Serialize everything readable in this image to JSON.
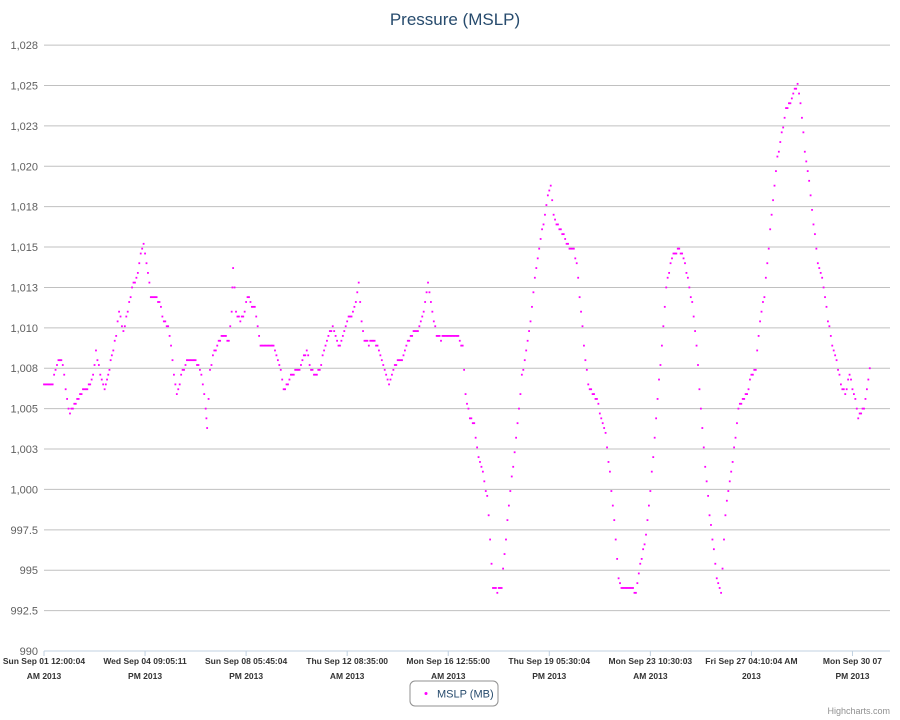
{
  "chart_data": {
    "type": "scatter",
    "title": "Pressure (MSLP)",
    "colors": {
      "series": "#ff00ff",
      "grid": "#c0c0c0",
      "title": "#274b6d"
    },
    "ylim": [
      990,
      1028
    ],
    "y_ticks": [
      990,
      992.5,
      995,
      997.5,
      1000,
      1002.5,
      1005,
      1007.5,
      1010,
      1012.5,
      1015,
      1017.5,
      1020,
      1022.5,
      1025,
      1027.5
    ],
    "y_tick_labels": [
      "990",
      "992.5",
      "995",
      "997.5",
      "1,000",
      "1,003",
      "1,005",
      "1,008",
      "1,010",
      "1,013",
      "1,015",
      "1,018",
      "1,020",
      "1,023",
      "1,025",
      "1,028"
    ],
    "xlim_days": [
      0,
      29.3
    ],
    "x_ticks": [
      {
        "day": 0.0,
        "line1": "Sun Sep 01 12:00:04",
        "line2": "AM 2013"
      },
      {
        "day": 3.5,
        "line1": "Wed Sep 04 09:05:11",
        "line2": "PM 2013"
      },
      {
        "day": 7.0,
        "line1": "Sun Sep 08 05:45:04",
        "line2": "PM 2013"
      },
      {
        "day": 10.5,
        "line1": "Thu Sep 12 08:35:00",
        "line2": "AM 2013"
      },
      {
        "day": 14.0,
        "line1": "Mon Sep 16 12:55:00",
        "line2": "AM 2013"
      },
      {
        "day": 17.5,
        "line1": "Thu Sep 19 05:30:04",
        "line2": "PM 2013"
      },
      {
        "day": 21.0,
        "line1": "Mon Sep 23 10:30:03",
        "line2": "AM 2013"
      },
      {
        "day": 24.5,
        "line1": "Fri Sep 27 04:10:04 AM",
        "line2": "2013"
      },
      {
        "day": 28.0,
        "line1": "Mon Sep 30 07",
        "line2": "PM 2013"
      }
    ],
    "series": [
      {
        "name": "MSLP (MB)",
        "keypoints": [
          [
            0.0,
            1006.5
          ],
          [
            0.3,
            1006.6
          ],
          [
            0.5,
            1008.0
          ],
          [
            0.65,
            1007.8
          ],
          [
            0.8,
            1005.5
          ],
          [
            0.9,
            1004.7
          ],
          [
            1.1,
            1005.3
          ],
          [
            1.3,
            1006.0
          ],
          [
            1.5,
            1006.2
          ],
          [
            1.7,
            1007.0
          ],
          [
            1.8,
            1008.5
          ],
          [
            1.95,
            1007.2
          ],
          [
            2.1,
            1006.2
          ],
          [
            2.35,
            1008.2
          ],
          [
            2.5,
            1009.5
          ],
          [
            2.6,
            1011.0
          ],
          [
            2.75,
            1009.8
          ],
          [
            2.9,
            1011.0
          ],
          [
            3.05,
            1012.5
          ],
          [
            3.2,
            1013.0
          ],
          [
            3.35,
            1014.5
          ],
          [
            3.45,
            1015.2
          ],
          [
            3.6,
            1013.5
          ],
          [
            3.7,
            1011.8
          ],
          [
            3.85,
            1012.0
          ],
          [
            4.0,
            1011.5
          ],
          [
            4.15,
            1010.5
          ],
          [
            4.3,
            1010.0
          ],
          [
            4.4,
            1009.0
          ],
          [
            4.5,
            1007.0
          ],
          [
            4.6,
            1005.8
          ],
          [
            4.75,
            1007.0
          ],
          [
            4.9,
            1007.8
          ],
          [
            5.05,
            1008.0
          ],
          [
            5.25,
            1008.0
          ],
          [
            5.4,
            1007.5
          ],
          [
            5.5,
            1006.5
          ],
          [
            5.6,
            1005.0
          ],
          [
            5.65,
            1003.8
          ],
          [
            5.75,
            1007.5
          ],
          [
            5.9,
            1008.5
          ],
          [
            6.05,
            1009.2
          ],
          [
            6.2,
            1009.5
          ],
          [
            6.4,
            1009.2
          ],
          [
            6.5,
            1011.0
          ],
          [
            6.55,
            1013.8
          ],
          [
            6.65,
            1011.0
          ],
          [
            6.8,
            1010.5
          ],
          [
            6.95,
            1011.0
          ],
          [
            7.05,
            1012.0
          ],
          [
            7.15,
            1011.5
          ],
          [
            7.3,
            1011.2
          ],
          [
            7.4,
            1010.0
          ],
          [
            7.5,
            1009.0
          ],
          [
            7.7,
            1009.0
          ],
          [
            7.9,
            1009.0
          ],
          [
            8.0,
            1008.5
          ],
          [
            8.2,
            1007.5
          ],
          [
            8.3,
            1006.2
          ],
          [
            8.45,
            1006.5
          ],
          [
            8.6,
            1007.2
          ],
          [
            8.8,
            1007.3
          ],
          [
            8.95,
            1008.0
          ],
          [
            9.1,
            1008.5
          ],
          [
            9.25,
            1007.5
          ],
          [
            9.4,
            1007.0
          ],
          [
            9.55,
            1007.5
          ],
          [
            9.7,
            1008.5
          ],
          [
            9.85,
            1009.5
          ],
          [
            10.0,
            1010.0
          ],
          [
            10.1,
            1009.5
          ],
          [
            10.2,
            1008.8
          ],
          [
            10.35,
            1009.5
          ],
          [
            10.5,
            1010.5
          ],
          [
            10.65,
            1010.8
          ],
          [
            10.8,
            1011.5
          ],
          [
            10.9,
            1012.8
          ],
          [
            11.0,
            1010.5
          ],
          [
            11.1,
            1009.2
          ],
          [
            11.25,
            1009.0
          ],
          [
            11.4,
            1009.3
          ],
          [
            11.55,
            1008.8
          ],
          [
            11.7,
            1008.0
          ],
          [
            11.8,
            1007.5
          ],
          [
            11.95,
            1006.5
          ],
          [
            12.1,
            1007.5
          ],
          [
            12.25,
            1008.0
          ],
          [
            12.4,
            1008.0
          ],
          [
            12.55,
            1009.0
          ],
          [
            12.7,
            1009.5
          ],
          [
            12.85,
            1009.8
          ],
          [
            13.0,
            1010.0
          ],
          [
            13.15,
            1011.0
          ],
          [
            13.3,
            1012.8
          ],
          [
            13.45,
            1011.0
          ],
          [
            13.6,
            1009.5
          ],
          [
            13.75,
            1009.3
          ],
          [
            13.9,
            1009.5
          ],
          [
            14.05,
            1009.5
          ],
          [
            14.2,
            1009.5
          ],
          [
            14.35,
            1009.5
          ],
          [
            14.5,
            1008.8
          ],
          [
            14.6,
            1005.8
          ],
          [
            14.75,
            1004.5
          ],
          [
            14.9,
            1004.0
          ],
          [
            15.05,
            1002.0
          ],
          [
            15.2,
            1001.0
          ],
          [
            15.35,
            999.5
          ],
          [
            15.45,
            997.0
          ],
          [
            15.55,
            994.0
          ],
          [
            15.7,
            993.7
          ],
          [
            15.85,
            994.0
          ],
          [
            15.95,
            996.0
          ],
          [
            16.1,
            999.0
          ],
          [
            16.25,
            1001.5
          ],
          [
            16.4,
            1004.0
          ],
          [
            16.55,
            1007.0
          ],
          [
            16.7,
            1008.5
          ],
          [
            16.85,
            1010.5
          ],
          [
            17.0,
            1013.0
          ],
          [
            17.15,
            1015.0
          ],
          [
            17.3,
            1016.5
          ],
          [
            17.45,
            1018.3
          ],
          [
            17.55,
            1018.8
          ],
          [
            17.65,
            1017.0
          ],
          [
            17.75,
            1016.5
          ],
          [
            17.9,
            1016.0
          ],
          [
            18.05,
            1015.5
          ],
          [
            18.2,
            1015.0
          ],
          [
            18.35,
            1014.8
          ],
          [
            18.45,
            1014.0
          ],
          [
            18.6,
            1011.0
          ],
          [
            18.75,
            1008.0
          ],
          [
            18.85,
            1006.5
          ],
          [
            19.0,
            1006.0
          ],
          [
            19.15,
            1005.5
          ],
          [
            19.3,
            1004.5
          ],
          [
            19.45,
            1003.5
          ],
          [
            19.6,
            1001.0
          ],
          [
            19.75,
            998.0
          ],
          [
            19.9,
            994.5
          ],
          [
            20.0,
            993.8
          ],
          [
            20.2,
            993.8
          ],
          [
            20.35,
            994.0
          ],
          [
            20.5,
            993.5
          ],
          [
            20.65,
            995.5
          ],
          [
            20.8,
            996.5
          ],
          [
            20.95,
            999.0
          ],
          [
            21.1,
            1002.0
          ],
          [
            21.25,
            1005.5
          ],
          [
            21.4,
            1009.0
          ],
          [
            21.55,
            1012.5
          ],
          [
            21.7,
            1014.0
          ],
          [
            21.85,
            1014.7
          ],
          [
            22.0,
            1014.8
          ],
          [
            22.15,
            1014.3
          ],
          [
            22.3,
            1013.0
          ],
          [
            22.45,
            1011.5
          ],
          [
            22.6,
            1009.0
          ],
          [
            22.75,
            1005.0
          ],
          [
            22.9,
            1001.5
          ],
          [
            23.05,
            998.5
          ],
          [
            23.15,
            997.0
          ],
          [
            23.3,
            994.5
          ],
          [
            23.45,
            993.5
          ],
          [
            23.6,
            998.5
          ],
          [
            23.75,
            1000.5
          ],
          [
            23.9,
            1002.5
          ],
          [
            24.05,
            1005.0
          ],
          [
            24.2,
            1005.5
          ],
          [
            24.35,
            1006.0
          ],
          [
            24.5,
            1007.0
          ],
          [
            24.65,
            1007.5
          ],
          [
            24.8,
            1010.5
          ],
          [
            24.95,
            1012.0
          ],
          [
            25.1,
            1015.0
          ],
          [
            25.25,
            1018.0
          ],
          [
            25.4,
            1020.5
          ],
          [
            25.55,
            1022.0
          ],
          [
            25.7,
            1023.5
          ],
          [
            25.85,
            1024.0
          ],
          [
            26.0,
            1024.8
          ],
          [
            26.1,
            1025.0
          ],
          [
            26.2,
            1024.0
          ],
          [
            26.35,
            1021.0
          ],
          [
            26.5,
            1019.0
          ],
          [
            26.65,
            1016.5
          ],
          [
            26.8,
            1014.0
          ],
          [
            26.9,
            1013.5
          ],
          [
            27.0,
            1012.5
          ],
          [
            27.15,
            1010.5
          ],
          [
            27.3,
            1009.0
          ],
          [
            27.45,
            1008.0
          ],
          [
            27.6,
            1006.5
          ],
          [
            27.75,
            1006.0
          ],
          [
            27.9,
            1007.0
          ],
          [
            28.05,
            1006.0
          ],
          [
            28.2,
            1004.5
          ],
          [
            28.4,
            1005.0
          ],
          [
            28.6,
            1007.5
          ]
        ]
      }
    ],
    "legend": {
      "position": "bottom-center"
    },
    "credits": "Highcharts.com"
  }
}
